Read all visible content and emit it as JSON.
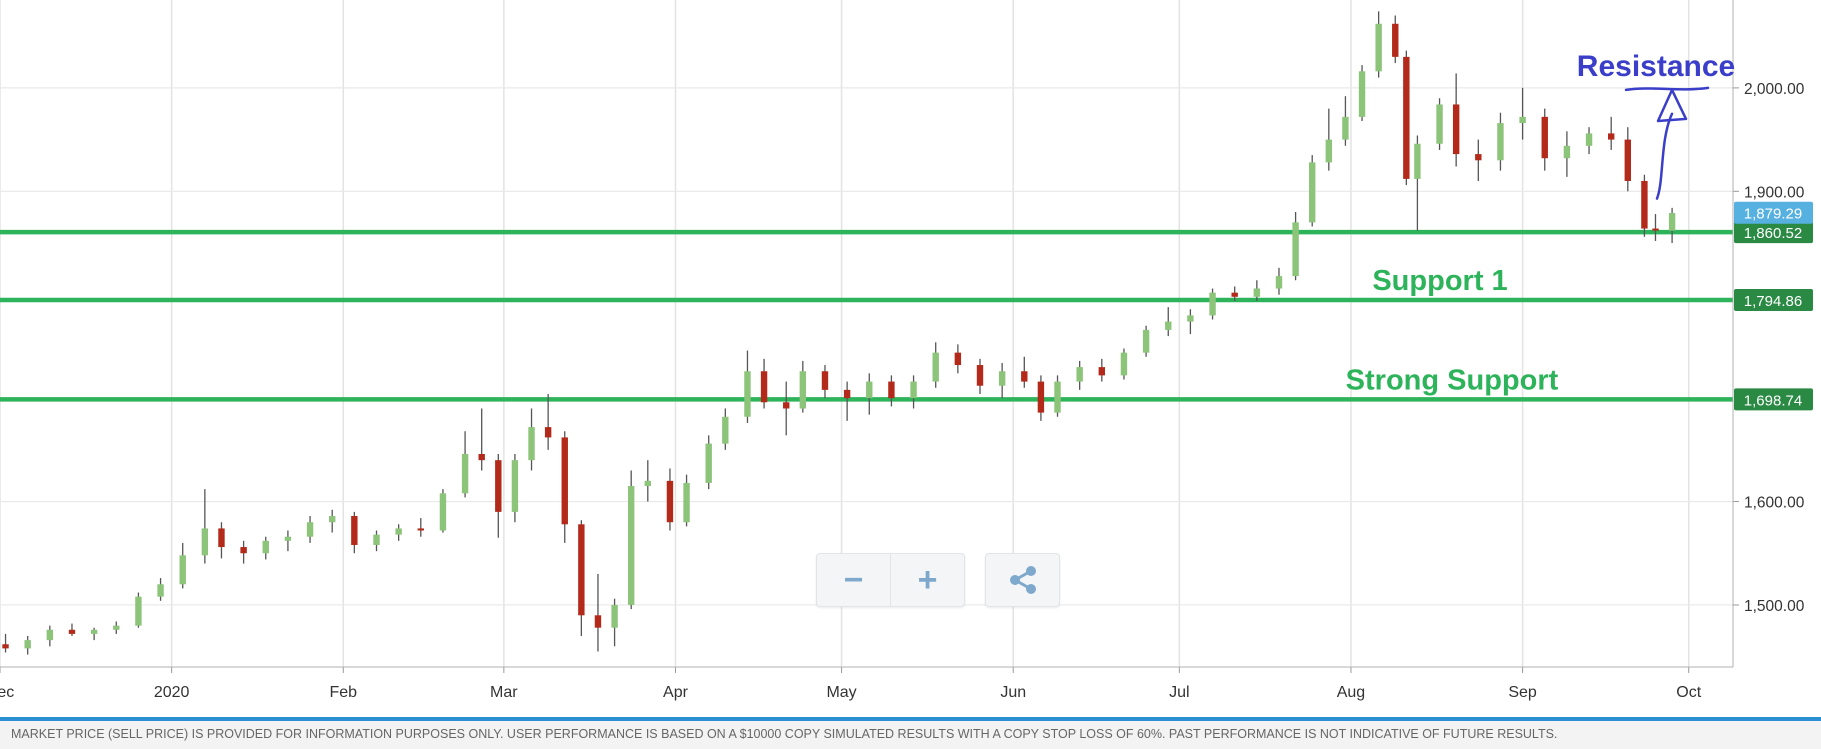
{
  "chart_data": {
    "type": "candlestick",
    "x_tick_labels": [
      "Dec",
      "2020",
      "Feb",
      "Mar",
      "Apr",
      "May",
      "Jun",
      "Jul",
      "Aug",
      "Sep",
      "Oct"
    ],
    "x_range": [
      "2019-12-01",
      "2020-10-09"
    ],
    "y_ticks": [
      "1,500.00",
      "1,600.00",
      "1,900.00",
      "2,000.00"
    ],
    "ylim": [
      1440,
      2085
    ],
    "grid": true,
    "colors": {
      "up": "#8cc47a",
      "down": "#b32a1a",
      "level_line": "#2db35a",
      "annotation": "#3a3ec8",
      "current_price_badge": "#56b0e0",
      "level_badge": "#2a8a44"
    },
    "current_price": {
      "label": "1,879.29",
      "value": 1879.29
    },
    "levels": [
      {
        "label": "1,860.52",
        "value": 1860.52,
        "annotation": ""
      },
      {
        "label": "1,794.86",
        "value": 1794.86,
        "annotation": "Support 1"
      },
      {
        "label": "1,698.74",
        "value": 1698.74,
        "annotation": "Strong Support"
      }
    ],
    "resistance_annotation": "Resistance",
    "resistance_level": 2000,
    "candles": [
      {
        "d": "2019-12-02",
        "o": 1462,
        "h": 1472,
        "l": 1454,
        "c": 1458
      },
      {
        "d": "2019-12-06",
        "o": 1458,
        "h": 1470,
        "l": 1452,
        "c": 1466
      },
      {
        "d": "2019-12-10",
        "o": 1466,
        "h": 1480,
        "l": 1460,
        "c": 1476
      },
      {
        "d": "2019-12-14",
        "o": 1476,
        "h": 1482,
        "l": 1470,
        "c": 1472
      },
      {
        "d": "2019-12-18",
        "o": 1472,
        "h": 1478,
        "l": 1466,
        "c": 1476
      },
      {
        "d": "2019-12-22",
        "o": 1476,
        "h": 1484,
        "l": 1472,
        "c": 1480
      },
      {
        "d": "2019-12-26",
        "o": 1480,
        "h": 1512,
        "l": 1478,
        "c": 1508
      },
      {
        "d": "2019-12-30",
        "o": 1508,
        "h": 1526,
        "l": 1504,
        "c": 1520
      },
      {
        "d": "2020-01-03",
        "o": 1520,
        "h": 1560,
        "l": 1516,
        "c": 1548
      },
      {
        "d": "2020-01-07",
        "o": 1548,
        "h": 1612,
        "l": 1540,
        "c": 1574
      },
      {
        "d": "2020-01-10",
        "o": 1574,
        "h": 1580,
        "l": 1545,
        "c": 1556
      },
      {
        "d": "2020-01-14",
        "o": 1556,
        "h": 1562,
        "l": 1540,
        "c": 1550
      },
      {
        "d": "2020-01-18",
        "o": 1550,
        "h": 1566,
        "l": 1544,
        "c": 1562
      },
      {
        "d": "2020-01-22",
        "o": 1562,
        "h": 1572,
        "l": 1552,
        "c": 1566
      },
      {
        "d": "2020-01-26",
        "o": 1566,
        "h": 1586,
        "l": 1560,
        "c": 1580
      },
      {
        "d": "2020-01-30",
        "o": 1580,
        "h": 1592,
        "l": 1570,
        "c": 1586
      },
      {
        "d": "2020-02-03",
        "o": 1586,
        "h": 1590,
        "l": 1550,
        "c": 1558
      },
      {
        "d": "2020-02-07",
        "o": 1558,
        "h": 1572,
        "l": 1552,
        "c": 1568
      },
      {
        "d": "2020-02-11",
        "o": 1568,
        "h": 1578,
        "l": 1562,
        "c": 1574
      },
      {
        "d": "2020-02-15",
        "o": 1574,
        "h": 1584,
        "l": 1566,
        "c": 1572
      },
      {
        "d": "2020-02-19",
        "o": 1572,
        "h": 1612,
        "l": 1570,
        "c": 1608
      },
      {
        "d": "2020-02-23",
        "o": 1608,
        "h": 1668,
        "l": 1604,
        "c": 1646
      },
      {
        "d": "2020-02-26",
        "o": 1646,
        "h": 1690,
        "l": 1630,
        "c": 1640
      },
      {
        "d": "2020-02-29",
        "o": 1640,
        "h": 1646,
        "l": 1565,
        "c": 1590
      },
      {
        "d": "2020-03-03",
        "o": 1590,
        "h": 1646,
        "l": 1580,
        "c": 1640
      },
      {
        "d": "2020-03-06",
        "o": 1640,
        "h": 1690,
        "l": 1630,
        "c": 1672
      },
      {
        "d": "2020-03-09",
        "o": 1672,
        "h": 1704,
        "l": 1650,
        "c": 1662
      },
      {
        "d": "2020-03-12",
        "o": 1662,
        "h": 1668,
        "l": 1560,
        "c": 1578
      },
      {
        "d": "2020-03-15",
        "o": 1578,
        "h": 1582,
        "l": 1470,
        "c": 1490
      },
      {
        "d": "2020-03-18",
        "o": 1490,
        "h": 1530,
        "l": 1455,
        "c": 1478
      },
      {
        "d": "2020-03-21",
        "o": 1478,
        "h": 1506,
        "l": 1460,
        "c": 1500
      },
      {
        "d": "2020-03-24",
        "o": 1500,
        "h": 1630,
        "l": 1496,
        "c": 1615
      },
      {
        "d": "2020-03-27",
        "o": 1615,
        "h": 1640,
        "l": 1600,
        "c": 1620
      },
      {
        "d": "2020-03-31",
        "o": 1620,
        "h": 1632,
        "l": 1572,
        "c": 1580
      },
      {
        "d": "2020-04-03",
        "o": 1580,
        "h": 1626,
        "l": 1576,
        "c": 1618
      },
      {
        "d": "2020-04-07",
        "o": 1618,
        "h": 1664,
        "l": 1612,
        "c": 1656
      },
      {
        "d": "2020-04-10",
        "o": 1656,
        "h": 1690,
        "l": 1650,
        "c": 1682
      },
      {
        "d": "2020-04-14",
        "o": 1682,
        "h": 1746,
        "l": 1676,
        "c": 1726
      },
      {
        "d": "2020-04-17",
        "o": 1726,
        "h": 1738,
        "l": 1690,
        "c": 1696
      },
      {
        "d": "2020-04-21",
        "o": 1696,
        "h": 1716,
        "l": 1664,
        "c": 1690
      },
      {
        "d": "2020-04-24",
        "o": 1690,
        "h": 1736,
        "l": 1686,
        "c": 1726
      },
      {
        "d": "2020-04-28",
        "o": 1726,
        "h": 1732,
        "l": 1700,
        "c": 1708
      },
      {
        "d": "2020-05-02",
        "o": 1708,
        "h": 1716,
        "l": 1678,
        "c": 1700
      },
      {
        "d": "2020-05-06",
        "o": 1700,
        "h": 1724,
        "l": 1684,
        "c": 1716
      },
      {
        "d": "2020-05-10",
        "o": 1716,
        "h": 1722,
        "l": 1692,
        "c": 1700
      },
      {
        "d": "2020-05-14",
        "o": 1700,
        "h": 1722,
        "l": 1690,
        "c": 1716
      },
      {
        "d": "2020-05-18",
        "o": 1716,
        "h": 1754,
        "l": 1710,
        "c": 1744
      },
      {
        "d": "2020-05-22",
        "o": 1744,
        "h": 1752,
        "l": 1724,
        "c": 1732
      },
      {
        "d": "2020-05-26",
        "o": 1732,
        "h": 1738,
        "l": 1704,
        "c": 1712
      },
      {
        "d": "2020-05-30",
        "o": 1712,
        "h": 1734,
        "l": 1700,
        "c": 1726
      },
      {
        "d": "2020-06-03",
        "o": 1726,
        "h": 1740,
        "l": 1710,
        "c": 1716
      },
      {
        "d": "2020-06-06",
        "o": 1716,
        "h": 1722,
        "l": 1678,
        "c": 1686
      },
      {
        "d": "2020-06-09",
        "o": 1686,
        "h": 1722,
        "l": 1682,
        "c": 1716
      },
      {
        "d": "2020-06-13",
        "o": 1716,
        "h": 1736,
        "l": 1708,
        "c": 1730
      },
      {
        "d": "2020-06-17",
        "o": 1730,
        "h": 1738,
        "l": 1716,
        "c": 1722
      },
      {
        "d": "2020-06-21",
        "o": 1722,
        "h": 1748,
        "l": 1718,
        "c": 1744
      },
      {
        "d": "2020-06-25",
        "o": 1744,
        "h": 1770,
        "l": 1740,
        "c": 1766
      },
      {
        "d": "2020-06-29",
        "o": 1766,
        "h": 1788,
        "l": 1760,
        "c": 1774
      },
      {
        "d": "2020-07-03",
        "o": 1774,
        "h": 1786,
        "l": 1762,
        "c": 1780
      },
      {
        "d": "2020-07-07",
        "o": 1780,
        "h": 1806,
        "l": 1776,
        "c": 1802
      },
      {
        "d": "2020-07-11",
        "o": 1802,
        "h": 1808,
        "l": 1794,
        "c": 1798
      },
      {
        "d": "2020-07-15",
        "o": 1798,
        "h": 1814,
        "l": 1794,
        "c": 1806
      },
      {
        "d": "2020-07-19",
        "o": 1806,
        "h": 1826,
        "l": 1800,
        "c": 1818
      },
      {
        "d": "2020-07-22",
        "o": 1818,
        "h": 1880,
        "l": 1814,
        "c": 1870
      },
      {
        "d": "2020-07-25",
        "o": 1870,
        "h": 1935,
        "l": 1866,
        "c": 1928
      },
      {
        "d": "2020-07-28",
        "o": 1928,
        "h": 1980,
        "l": 1920,
        "c": 1950
      },
      {
        "d": "2020-07-31",
        "o": 1950,
        "h": 1992,
        "l": 1944,
        "c": 1972
      },
      {
        "d": "2020-08-03",
        "o": 1972,
        "h": 2022,
        "l": 1968,
        "c": 2016
      },
      {
        "d": "2020-08-06",
        "o": 2016,
        "h": 2074,
        "l": 2010,
        "c": 2062
      },
      {
        "d": "2020-08-09",
        "o": 2062,
        "h": 2070,
        "l": 2024,
        "c": 2030
      },
      {
        "d": "2020-08-11",
        "o": 2030,
        "h": 2036,
        "l": 1906,
        "c": 1912
      },
      {
        "d": "2020-08-13",
        "o": 1912,
        "h": 1954,
        "l": 1862,
        "c": 1946
      },
      {
        "d": "2020-08-17",
        "o": 1946,
        "h": 1990,
        "l": 1940,
        "c": 1984
      },
      {
        "d": "2020-08-20",
        "o": 1984,
        "h": 2014,
        "l": 1924,
        "c": 1936
      },
      {
        "d": "2020-08-24",
        "o": 1936,
        "h": 1950,
        "l": 1910,
        "c": 1930
      },
      {
        "d": "2020-08-28",
        "o": 1930,
        "h": 1976,
        "l": 1920,
        "c": 1966
      },
      {
        "d": "2020-09-01",
        "o": 1966,
        "h": 2000,
        "l": 1950,
        "c": 1972
      },
      {
        "d": "2020-09-05",
        "o": 1972,
        "h": 1980,
        "l": 1920,
        "c": 1932
      },
      {
        "d": "2020-09-09",
        "o": 1932,
        "h": 1958,
        "l": 1914,
        "c": 1944
      },
      {
        "d": "2020-09-13",
        "o": 1944,
        "h": 1962,
        "l": 1936,
        "c": 1956
      },
      {
        "d": "2020-09-17",
        "o": 1956,
        "h": 1972,
        "l": 1940,
        "c": 1950
      },
      {
        "d": "2020-09-20",
        "o": 1950,
        "h": 1962,
        "l": 1900,
        "c": 1910
      },
      {
        "d": "2020-09-23",
        "o": 1910,
        "h": 1916,
        "l": 1856,
        "c": 1864
      },
      {
        "d": "2020-09-25",
        "o": 1864,
        "h": 1878,
        "l": 1852,
        "c": 1862
      },
      {
        "d": "2020-09-28",
        "o": 1862,
        "h": 1884,
        "l": 1850,
        "c": 1879
      }
    ]
  },
  "toolbar": {
    "zoom_out_glyph": "−",
    "zoom_in_glyph": "+",
    "share_icon": "share-icon"
  },
  "footer": {
    "disclaimer": "MARKET PRICE (SELL PRICE) IS PROVIDED FOR INFORMATION PURPOSES ONLY. USER PERFORMANCE IS BASED ON A $10000 COPY SIMULATED RESULTS WITH A COPY STOP LOSS OF 60%. PAST PERFORMANCE IS NOT INDICATIVE OF FUTURE RESULTS."
  }
}
